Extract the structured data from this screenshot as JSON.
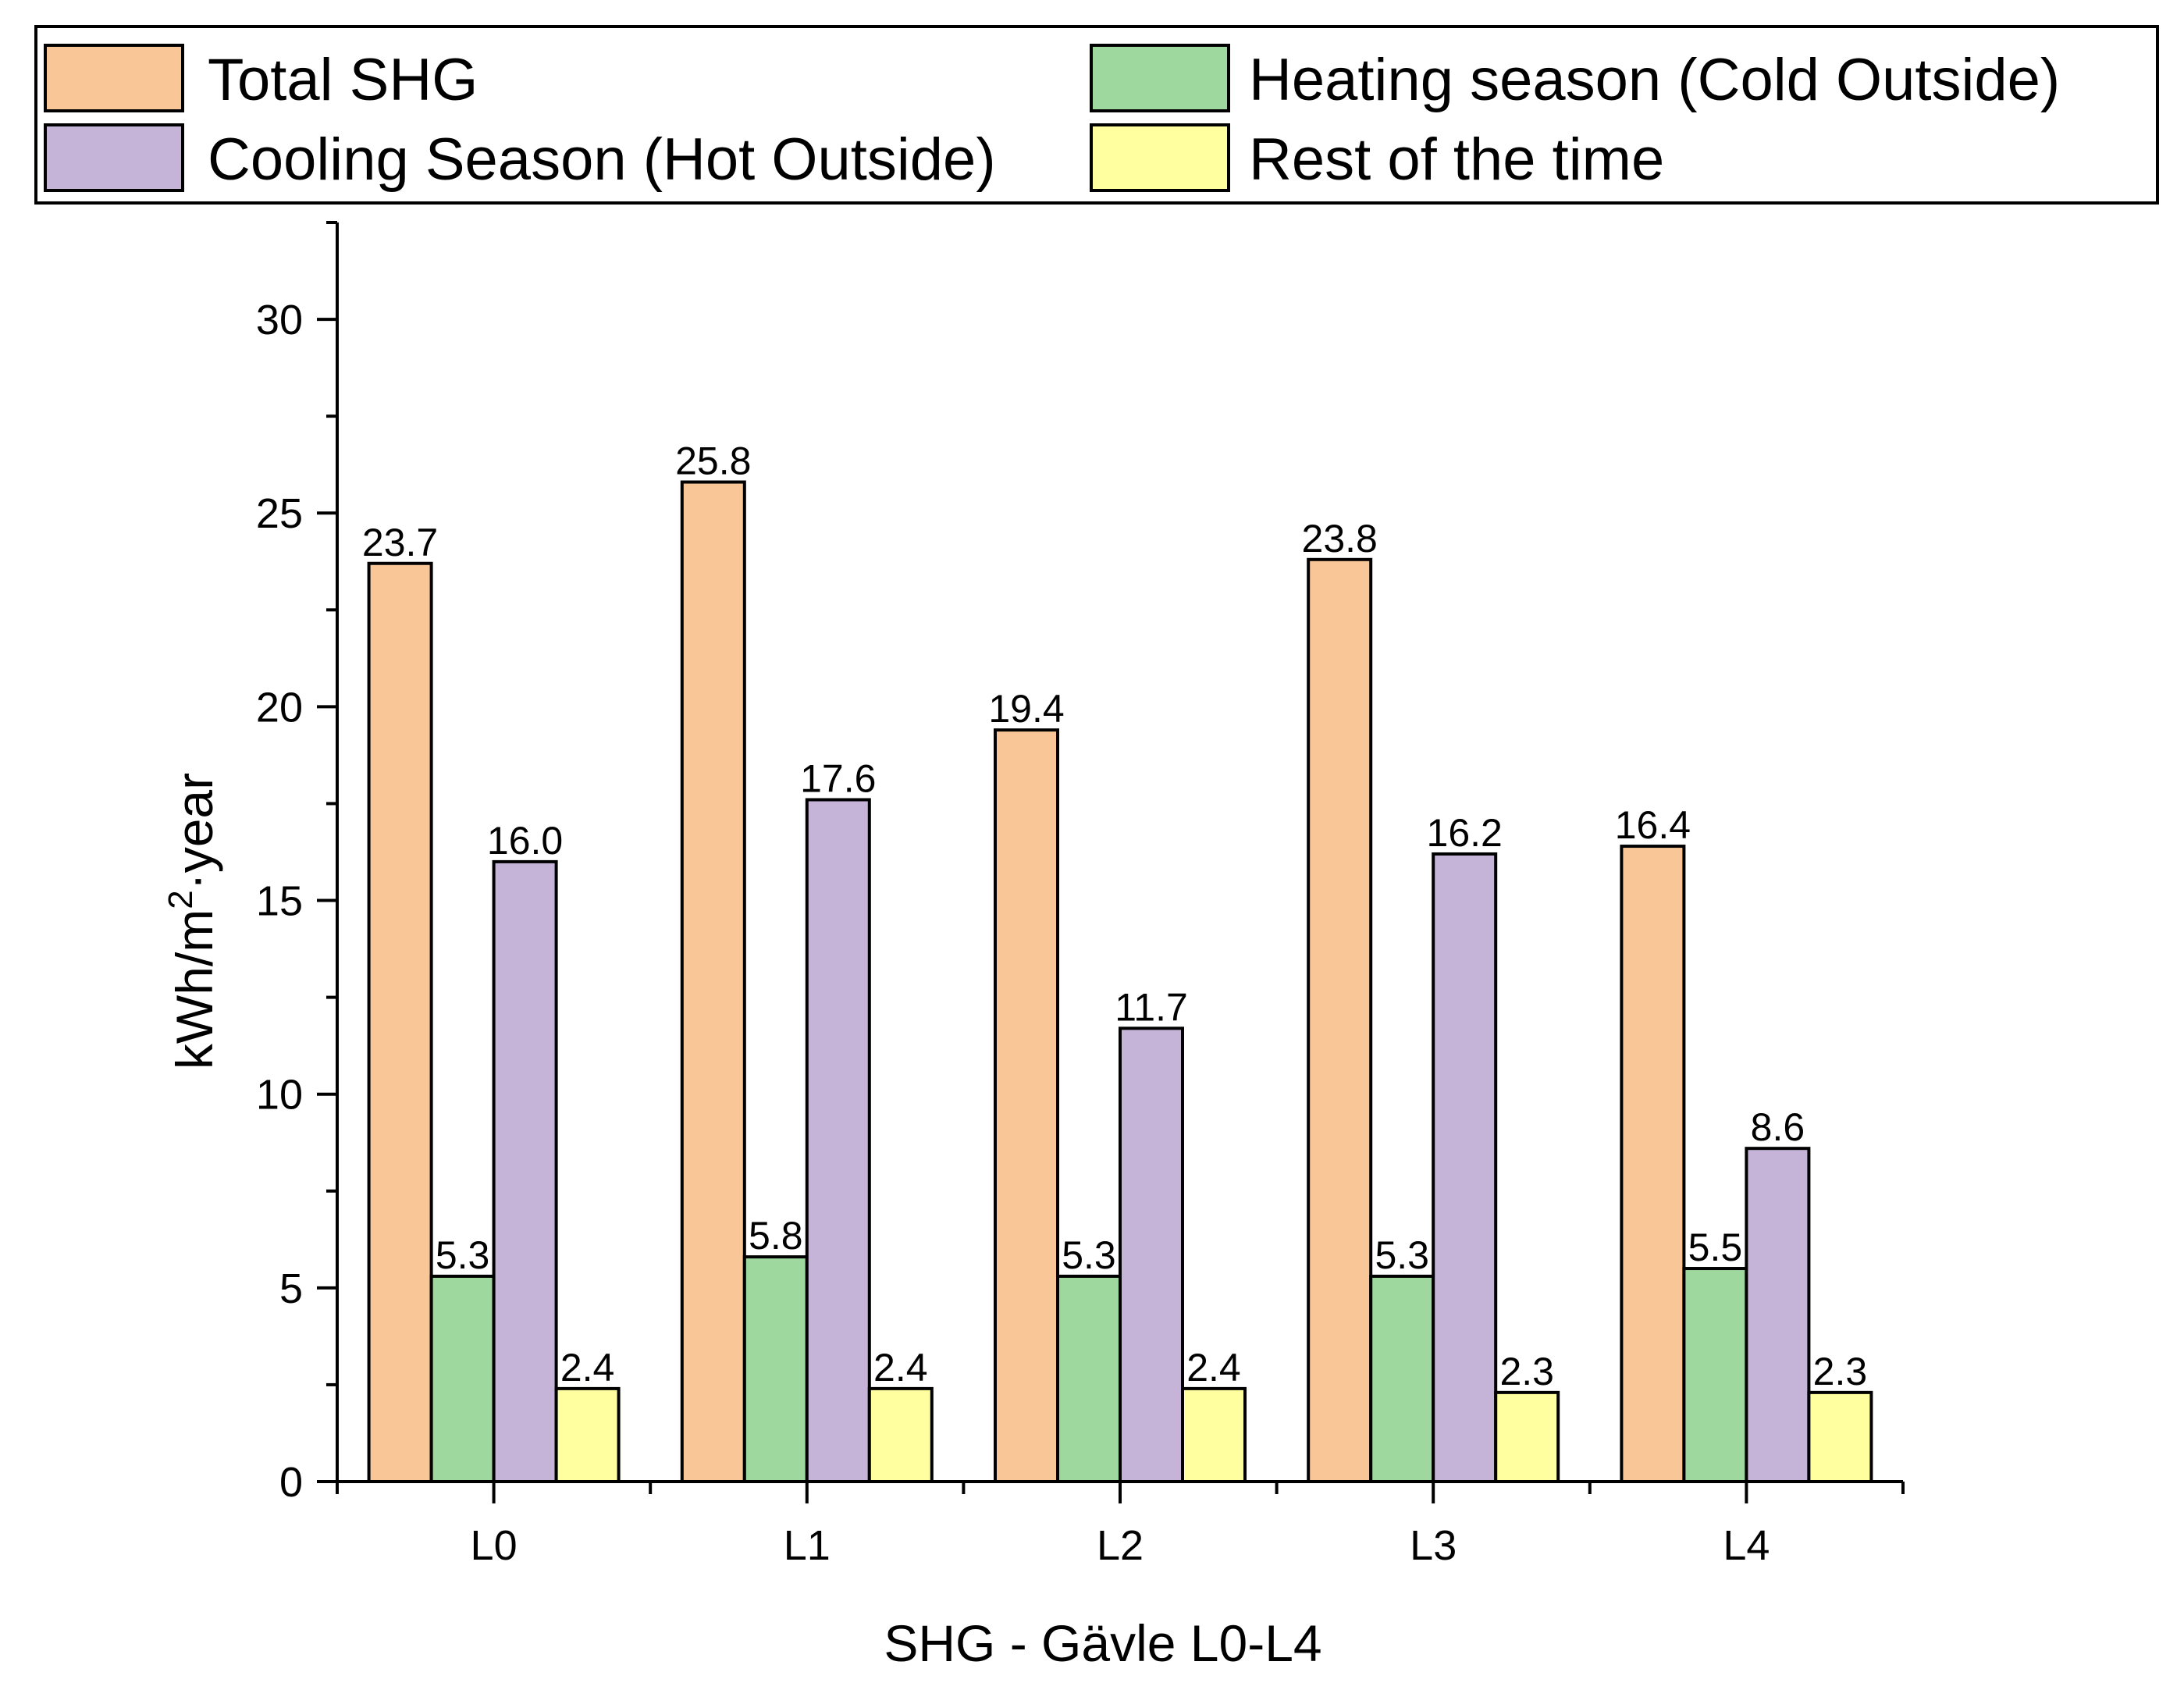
{
  "chart_data": {
    "type": "bar",
    "title": "",
    "xlabel": "SHG - Gävle L0-L4",
    "ylabel_main": "kWh/m",
    "ylabel_sup": "2",
    "ylabel_tail": "·year",
    "ylim": [
      0,
      32.5
    ],
    "yticks": [
      0,
      5,
      10,
      15,
      20,
      25,
      30
    ],
    "grid": false,
    "legend_position": "top",
    "categories": [
      "L0",
      "L1",
      "L2",
      "L3",
      "L4"
    ],
    "series": [
      {
        "name": "Total SHG",
        "color": "#F9C797",
        "values": [
          23.7,
          25.8,
          19.4,
          23.8,
          16.4
        ],
        "labels": [
          "23.7",
          "25.8",
          "19.4",
          "23.8",
          "16.4"
        ]
      },
      {
        "name": "Heating season (Cold Outside)",
        "color": "#9FD89F",
        "values": [
          5.3,
          5.8,
          5.3,
          5.3,
          5.5
        ],
        "labels": [
          "5.3",
          "5.8",
          "5.3",
          "5.3",
          "5.5"
        ]
      },
      {
        "name": "Cooling Season (Hot Outside)",
        "color": "#C5B3D8",
        "values": [
          16.0,
          17.6,
          11.7,
          16.2,
          8.6
        ],
        "labels": [
          "16.0",
          "17.6",
          "11.7",
          "16.2",
          "8.6"
        ]
      },
      {
        "name": "Rest of the time",
        "color": "#FFFF9F",
        "values": [
          2.4,
          2.4,
          2.4,
          2.3,
          2.3
        ],
        "labels": [
          "2.4",
          "2.4",
          "2.4",
          "2.3",
          "2.3"
        ]
      }
    ]
  }
}
